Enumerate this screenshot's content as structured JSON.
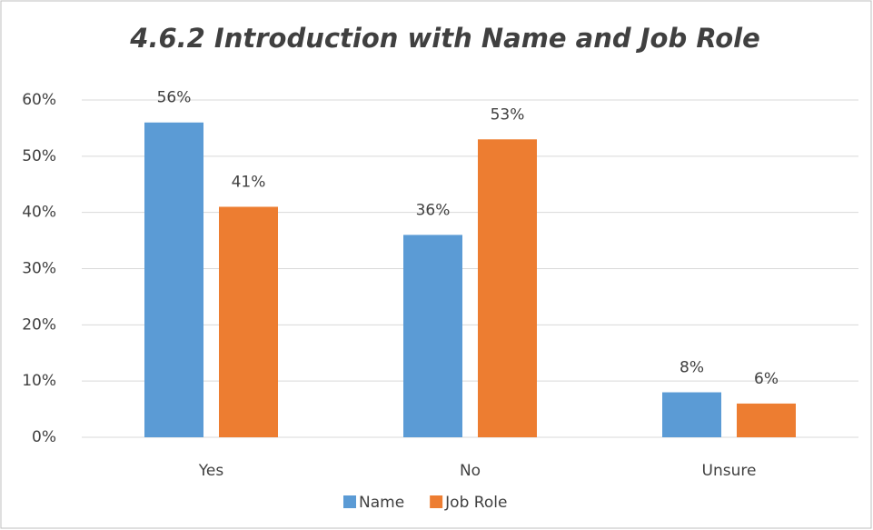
{
  "chart_data": {
    "type": "bar",
    "title": "4.6.2 Introduction with Name and Job Role",
    "categories": [
      "Yes",
      "No",
      "Unsure"
    ],
    "series": [
      {
        "name": "Name",
        "color": "#5b9bd5",
        "values": [
          56,
          36,
          8
        ],
        "value_labels": [
          "56%",
          "36%",
          "8%"
        ]
      },
      {
        "name": "Job Role",
        "color": "#ed7d31",
        "values": [
          41,
          53,
          6
        ],
        "value_labels": [
          "41%",
          "53%",
          "6%"
        ]
      }
    ],
    "ylim": [
      0,
      60
    ],
    "yticks": [
      {
        "value": 0,
        "label": "0%"
      },
      {
        "value": 10,
        "label": "10%"
      },
      {
        "value": 20,
        "label": "20%"
      },
      {
        "value": 30,
        "label": "30%"
      },
      {
        "value": 40,
        "label": "40%"
      },
      {
        "value": 50,
        "label": "50%"
      },
      {
        "value": 60,
        "label": "60%"
      }
    ],
    "grid": true,
    "legend": "bottom"
  }
}
